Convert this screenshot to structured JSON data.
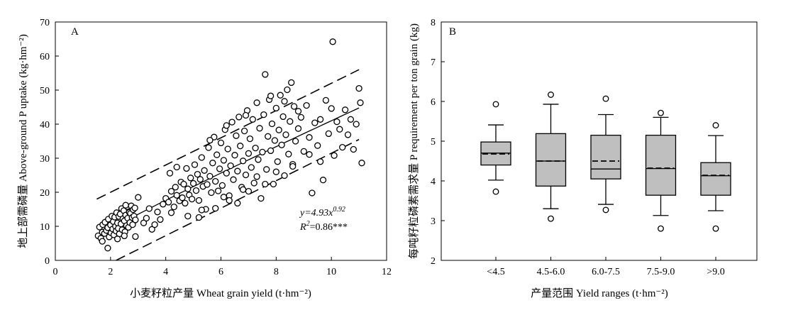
{
  "chart_data": [
    {
      "panel": "A",
      "type": "scatter",
      "xlabel": "小麦籽粒产量 Wheat grain yield (t·hm⁻²)",
      "ylabel": "地上部需磷量 Above-ground P uptake (kg·hm⁻²)",
      "xlim": [
        0,
        12
      ],
      "ylim": [
        0,
        70
      ],
      "xticks": [
        "0",
        "2",
        "4",
        "6",
        "8",
        "10",
        "12"
      ],
      "yticks": [
        "0",
        "10",
        "20",
        "30",
        "40",
        "50",
        "60",
        "70"
      ],
      "grid": false,
      "fit": {
        "equation": "y=4.93x^0.92",
        "r2": "R²=0.86***",
        "a": 4.93,
        "b": 0.92,
        "x_range": [
          1.5,
          11.0
        ],
        "upper_band": [
          [
            1.5,
            18.0
          ],
          [
            11.0,
            56.0
          ]
        ],
        "lower_band": [
          [
            2.2,
            0.0
          ],
          [
            11.0,
            35.5
          ]
        ]
      },
      "points": [
        [
          1.55,
          7.2
        ],
        [
          1.6,
          9.8
        ],
        [
          1.65,
          6.5
        ],
        [
          1.7,
          8.3
        ],
        [
          1.72,
          10.5
        ],
        [
          1.78,
          7.9
        ],
        [
          1.8,
          11.2
        ],
        [
          1.85,
          8.8
        ],
        [
          1.9,
          9.6
        ],
        [
          1.92,
          12.1
        ],
        [
          1.95,
          6.9
        ],
        [
          2.0,
          10.4
        ],
        [
          2.02,
          8.1
        ],
        [
          2.05,
          13.0
        ],
        [
          2.08,
          9.2
        ],
        [
          2.1,
          11.4
        ],
        [
          2.12,
          7.5
        ],
        [
          2.15,
          12.7
        ],
        [
          2.18,
          10.0
        ],
        [
          2.2,
          8.6
        ],
        [
          2.22,
          14.0
        ],
        [
          2.25,
          11.0
        ],
        [
          2.28,
          9.4
        ],
        [
          2.3,
          12.9
        ],
        [
          2.32,
          7.8
        ],
        [
          2.35,
          13.6
        ],
        [
          2.38,
          10.7
        ],
        [
          2.4,
          15.2
        ],
        [
          2.42,
          9.0
        ],
        [
          2.45,
          12.2
        ],
        [
          2.48,
          14.6
        ],
        [
          2.5,
          11.6
        ],
        [
          2.52,
          8.4
        ],
        [
          2.55,
          13.3
        ],
        [
          2.58,
          10.2
        ],
        [
          2.6,
          15.8
        ],
        [
          2.62,
          12.4
        ],
        [
          2.65,
          9.7
        ],
        [
          2.68,
          14.1
        ],
        [
          2.7,
          11.1
        ],
        [
          2.72,
          13.8
        ],
        [
          2.75,
          16.0
        ],
        [
          2.78,
          12.6
        ],
        [
          2.8,
          10.5
        ],
        [
          2.82,
          14.9
        ],
        [
          2.85,
          13.0
        ],
        [
          2.88,
          15.4
        ],
        [
          2.9,
          11.9
        ],
        [
          1.7,
          5.6
        ],
        [
          1.9,
          3.6
        ],
        [
          2.25,
          6.3
        ],
        [
          2.5,
          7.2
        ],
        [
          2.9,
          7.0
        ],
        [
          2.55,
          16.2
        ],
        [
          3.2,
          11.0
        ],
        [
          3.3,
          12.4
        ],
        [
          3.5,
          9.1
        ],
        [
          3.6,
          10.5
        ],
        [
          3.7,
          14.2
        ],
        [
          3.8,
          12.0
        ],
        [
          3.9,
          16.5
        ],
        [
          4.0,
          18.2
        ],
        [
          4.1,
          17.1
        ],
        [
          4.15,
          25.6
        ],
        [
          4.2,
          20.3
        ],
        [
          4.3,
          15.7
        ],
        [
          4.35,
          21.5
        ],
        [
          4.4,
          19.1
        ],
        [
          4.5,
          17.5
        ],
        [
          4.55,
          23.0
        ],
        [
          4.6,
          18.4
        ],
        [
          4.65,
          22.4
        ],
        [
          4.7,
          16.8
        ],
        [
          4.75,
          27.0
        ],
        [
          4.8,
          21.0
        ],
        [
          4.85,
          19.2
        ],
        [
          4.9,
          24.2
        ],
        [
          4.95,
          18.0
        ],
        [
          5.0,
          22.6
        ],
        [
          5.05,
          28.1
        ],
        [
          5.1,
          20.5
        ],
        [
          5.15,
          25.3
        ],
        [
          5.2,
          17.6
        ],
        [
          5.25,
          23.8
        ],
        [
          5.3,
          30.2
        ],
        [
          5.35,
          21.7
        ],
        [
          5.4,
          26.4
        ],
        [
          5.45,
          15.0
        ],
        [
          5.5,
          22.3
        ],
        [
          5.55,
          33.1
        ],
        [
          5.6,
          24.7
        ],
        [
          5.65,
          19.9
        ],
        [
          5.7,
          28.6
        ],
        [
          5.75,
          36.2
        ],
        [
          5.8,
          23.2
        ],
        [
          5.85,
          31.0
        ],
        [
          5.9,
          20.4
        ],
        [
          5.95,
          26.9
        ],
        [
          6.0,
          34.5
        ],
        [
          6.05,
          22.0
        ],
        [
          6.1,
          29.4
        ],
        [
          6.15,
          38.4
        ],
        [
          6.2,
          25.6
        ],
        [
          6.25,
          32.7
        ],
        [
          6.3,
          19.0
        ],
        [
          6.35,
          27.8
        ],
        [
          6.4,
          40.6
        ],
        [
          6.45,
          23.7
        ],
        [
          6.5,
          30.9
        ],
        [
          6.55,
          36.6
        ],
        [
          6.6,
          26.2
        ],
        [
          6.65,
          42.1
        ],
        [
          6.7,
          33.6
        ],
        [
          6.75,
          21.5
        ],
        [
          6.8,
          29.2
        ],
        [
          6.85,
          38.0
        ],
        [
          6.9,
          25.1
        ],
        [
          6.95,
          44.0
        ],
        [
          7.0,
          31.4
        ],
        [
          7.05,
          35.7
        ],
        [
          7.1,
          27.3
        ],
        [
          7.15,
          41.4
        ],
        [
          7.2,
          22.7
        ],
        [
          7.25,
          33.0
        ],
        [
          7.3,
          46.3
        ],
        [
          7.35,
          29.6
        ],
        [
          7.4,
          38.8
        ],
        [
          7.45,
          18.2
        ],
        [
          7.5,
          31.8
        ],
        [
          7.55,
          42.8
        ],
        [
          7.6,
          54.6
        ],
        [
          7.65,
          26.7
        ],
        [
          7.7,
          36.4
        ],
        [
          7.75,
          47.2
        ],
        [
          7.8,
          32.2
        ],
        [
          7.85,
          40.1
        ],
        [
          7.9,
          22.4
        ],
        [
          7.95,
          35.2
        ],
        [
          8.0,
          44.7
        ],
        [
          8.05,
          29.0
        ],
        [
          8.1,
          38.3
        ],
        [
          8.15,
          48.5
        ],
        [
          8.2,
          33.9
        ],
        [
          8.25,
          42.2
        ],
        [
          8.3,
          24.9
        ],
        [
          8.35,
          36.9
        ],
        [
          8.4,
          50.1
        ],
        [
          8.45,
          31.2
        ],
        [
          8.5,
          40.8
        ],
        [
          8.55,
          52.2
        ],
        [
          8.6,
          28.2
        ],
        [
          8.65,
          45.2
        ],
        [
          8.7,
          35.0
        ],
        [
          8.8,
          38.7
        ],
        [
          8.9,
          42.0
        ],
        [
          9.0,
          32.0
        ],
        [
          9.1,
          45.5
        ],
        [
          9.2,
          36.1
        ],
        [
          9.3,
          19.8
        ],
        [
          9.4,
          40.4
        ],
        [
          9.5,
          33.7
        ],
        [
          9.6,
          41.4
        ],
        [
          9.7,
          23.6
        ],
        [
          9.8,
          47.0
        ],
        [
          9.9,
          37.2
        ],
        [
          10.0,
          44.6
        ],
        [
          10.05,
          64.2
        ],
        [
          10.1,
          30.8
        ],
        [
          10.2,
          40.7
        ],
        [
          10.4,
          33.2
        ],
        [
          10.5,
          44.2
        ],
        [
          10.6,
          36.9
        ],
        [
          10.7,
          41.4
        ],
        [
          10.8,
          32.6
        ],
        [
          10.9,
          40.0
        ],
        [
          11.0,
          50.5
        ],
        [
          11.05,
          46.3
        ],
        [
          11.1,
          28.6
        ],
        [
          5.2,
          12.6
        ],
        [
          5.8,
          15.3
        ],
        [
          6.3,
          17.6
        ],
        [
          6.8,
          20.8
        ],
        [
          7.3,
          24.6
        ],
        [
          4.4,
          27.4
        ],
        [
          4.8,
          13.0
        ],
        [
          5.3,
          14.8
        ],
        [
          6.1,
          18.6
        ],
        [
          6.6,
          16.8
        ],
        [
          7.0,
          20.3
        ],
        [
          7.6,
          22.4
        ],
        [
          8.0,
          26.0
        ],
        [
          8.6,
          27.6
        ],
        [
          9.2,
          31.1
        ],
        [
          3.0,
          18.5
        ],
        [
          3.4,
          15.2
        ],
        [
          4.2,
          14.0
        ],
        [
          5.6,
          35.3
        ],
        [
          6.2,
          39.6
        ],
        [
          6.9,
          42.6
        ],
        [
          7.8,
          48.3
        ],
        [
          8.3,
          46.7
        ],
        [
          8.8,
          43.8
        ],
        [
          9.6,
          29.0
        ],
        [
          10.3,
          38.5
        ]
      ]
    },
    {
      "panel": "B",
      "type": "box",
      "xlabel": "产量范围 Yield ranges (t·hm⁻²)",
      "ylabel": "每吨籽粒磷素需求量 P requirement per ton grain (kg)",
      "ylim": [
        2,
        8
      ],
      "yticks": [
        "2",
        "3",
        "4",
        "5",
        "6",
        "7",
        "8"
      ],
      "categories": [
        "<4.5",
        "4.5-6.0",
        "6.0-7.5",
        "7.5-9.0",
        ">9.0"
      ],
      "boxes": [
        {
          "q1": 4.4,
          "median": 4.7,
          "mean": 4.68,
          "q3": 4.98,
          "whisker_low": 4.02,
          "whisker_high": 5.41,
          "outliers": [
            5.93,
            3.73
          ]
        },
        {
          "q1": 3.87,
          "median": 4.5,
          "mean": 4.5,
          "q3": 5.19,
          "whisker_low": 3.3,
          "whisker_high": 5.93,
          "outliers": [
            6.17,
            3.05
          ]
        },
        {
          "q1": 4.05,
          "median": 4.3,
          "mean": 4.5,
          "q3": 5.15,
          "whisker_low": 3.41,
          "whisker_high": 5.67,
          "outliers": [
            6.07,
            3.27
          ]
        },
        {
          "q1": 3.64,
          "median": 4.31,
          "mean": 4.32,
          "q3": 5.15,
          "whisker_low": 3.13,
          "whisker_high": 5.6,
          "outliers": [
            5.71,
            2.8
          ]
        },
        {
          "q1": 3.64,
          "median": 4.13,
          "mean": 4.14,
          "q3": 4.46,
          "whisker_low": 3.25,
          "whisker_high": 5.14,
          "outliers": [
            5.4,
            2.8
          ]
        }
      ]
    }
  ]
}
